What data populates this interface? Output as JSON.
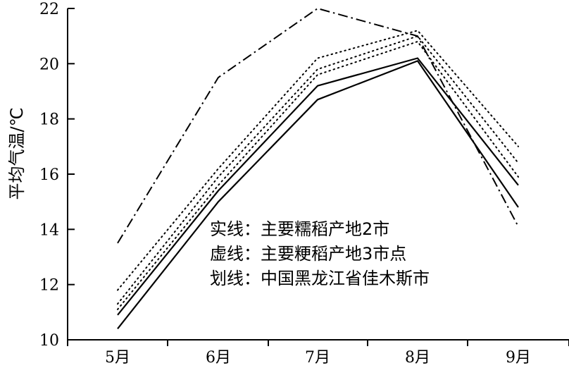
{
  "chart_data": {
    "type": "line",
    "title": "",
    "xlabel": "",
    "ylabel": "平均气温/℃",
    "categories": [
      "5月",
      "6月",
      "7月",
      "8月",
      "9月"
    ],
    "ylim": [
      10,
      22
    ],
    "yticks": [
      10,
      12,
      14,
      16,
      18,
      20,
      22
    ],
    "grid": false,
    "legend_lines": [
      "实线：主要糯稻产地2市",
      "虚线：主要粳稻产地3市点",
      "划线：中国黑龙江省佳木斯市"
    ],
    "series": [
      {
        "style": "solid",
        "color": "#000000",
        "values": [
          10.9,
          15.4,
          19.2,
          20.2,
          15.6
        ]
      },
      {
        "style": "solid",
        "color": "#000000",
        "values": [
          10.4,
          15.0,
          18.7,
          20.1,
          14.8
        ]
      },
      {
        "style": "dotted",
        "color": "#000000",
        "values": [
          11.8,
          16.2,
          20.2,
          21.2,
          17.0
        ]
      },
      {
        "style": "dotted",
        "color": "#000000",
        "values": [
          11.3,
          15.9,
          19.8,
          21.0,
          16.4
        ]
      },
      {
        "style": "dotted",
        "color": "#000000",
        "values": [
          11.1,
          15.6,
          19.6,
          20.8,
          15.9
        ]
      },
      {
        "style": "dashdot",
        "color": "#000000",
        "values": [
          13.5,
          19.5,
          22.0,
          21.0,
          14.1
        ]
      }
    ]
  }
}
